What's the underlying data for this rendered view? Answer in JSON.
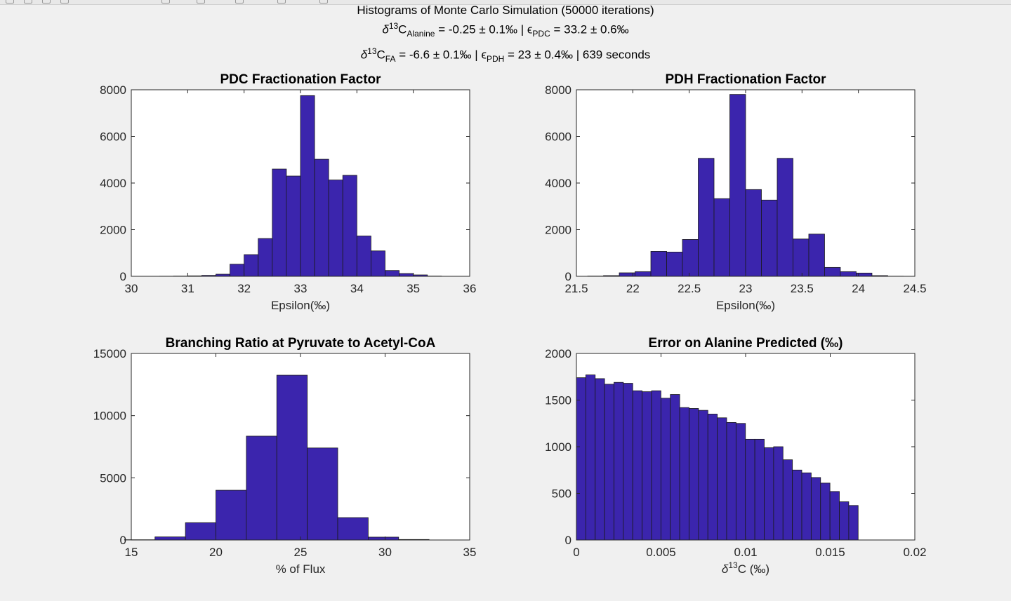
{
  "figure": {
    "line1": "Histograms of Monte Carlo Simulation (50000 iterations)",
    "line2": {
      "delta": "δ",
      "sup": "13",
      "C": "C",
      "sub_ala": "Alanine",
      "ala_val": " = -0.25 ± 0.1‰ ",
      "sep": "|",
      "eps": "ϵ",
      "sub_pdc": "PDC",
      "pdc_val": " = 33.2 ± 0.6‰"
    },
    "line3": {
      "delta": "δ",
      "sup": "13",
      "C": "C",
      "sub_fa": "FA",
      "fa_val": " = -6.6 ± 0.1‰ ",
      "sep1": "|",
      "eps": "ϵ",
      "sub_pdh": "PDH",
      "pdh_val": " = 23 ± 0.4‰ ",
      "sep2": "|",
      "seconds": "639 seconds"
    }
  },
  "chart_data": [
    {
      "type": "bar",
      "title": "PDC Fractionation Factor",
      "xlabel": "Epsilon(‰)",
      "ylabel": "",
      "xlim": [
        30,
        36
      ],
      "ylim": [
        0,
        8000
      ],
      "xticks": [
        "30",
        "31",
        "32",
        "33",
        "34",
        "35",
        "36"
      ],
      "yticks": [
        "0",
        "2000",
        "4000",
        "6000",
        "8000"
      ],
      "bin_edges": [
        30.25,
        30.5,
        30.75,
        31.0,
        31.25,
        31.5,
        31.75,
        32.0,
        32.25,
        32.5,
        32.75,
        33.0,
        33.25,
        33.5,
        33.75,
        34.0,
        34.25,
        34.5,
        34.75,
        35.0,
        35.25,
        35.5
      ],
      "values": [
        2,
        5,
        10,
        20,
        40,
        90,
        520,
        930,
        1620,
        4600,
        4300,
        7750,
        5020,
        4130,
        4330,
        1730,
        1090,
        250,
        120,
        60,
        10
      ]
    },
    {
      "type": "bar",
      "title": "PDH Fractionation Factor",
      "xlabel": "Epsilon(‰)",
      "ylabel": "",
      "xlim": [
        21.5,
        24.5
      ],
      "ylim": [
        0,
        8000
      ],
      "xticks": [
        "21.5",
        "22",
        "22.5",
        "23",
        "23.5",
        "24",
        "24.5"
      ],
      "yticks": [
        "0",
        "2000",
        "4000",
        "6000",
        "8000"
      ],
      "bin_edges": [
        21.6,
        21.74,
        21.88,
        22.02,
        22.16,
        22.3,
        22.44,
        22.58,
        22.72,
        22.86,
        23.0,
        23.14,
        23.28,
        23.42,
        23.56,
        23.7,
        23.84,
        23.98,
        24.12,
        24.26,
        24.4
      ],
      "values": [
        10,
        30,
        150,
        200,
        1070,
        1040,
        1580,
        5060,
        3330,
        7800,
        3720,
        3270,
        5060,
        1600,
        1810,
        380,
        200,
        140,
        30,
        5
      ]
    },
    {
      "type": "bar",
      "title": "Branching Ratio at Pyruvate to Acetyl-CoA",
      "xlabel": "% of Flux",
      "ylabel": "",
      "xlim": [
        15,
        35
      ],
      "ylim": [
        0,
        15000
      ],
      "xticks": [
        "15",
        "20",
        "25",
        "30",
        "35"
      ],
      "yticks": [
        "0",
        "5000",
        "10000",
        "15000"
      ],
      "bin_edges": [
        14.6,
        16.4,
        18.2,
        20.0,
        21.8,
        23.6,
        25.4,
        27.2,
        29.0,
        30.8,
        32.6
      ],
      "values": [
        20,
        250,
        1390,
        4000,
        8350,
        13250,
        7400,
        1800,
        230,
        40
      ]
    },
    {
      "type": "bar",
      "title": "Error on Alanine Predicted (‰)",
      "xlabel": "C (‰)",
      "ylabel": "",
      "xlim": [
        0,
        0.02
      ],
      "ylim": [
        0,
        2000
      ],
      "xticks": [
        "0",
        "0.005",
        "0.01",
        "0.015",
        "0.02"
      ],
      "yticks": [
        "0",
        "500",
        "1000",
        "1500",
        "2000"
      ],
      "bin_width": 0.000555,
      "values": [
        1740,
        1770,
        1730,
        1670,
        1690,
        1680,
        1600,
        1590,
        1600,
        1520,
        1560,
        1420,
        1410,
        1390,
        1350,
        1310,
        1260,
        1250,
        1080,
        1080,
        990,
        1000,
        860,
        750,
        720,
        670,
        610,
        520,
        410,
        370
      ]
    }
  ],
  "colors": {
    "bar_fill": "#3b25ad",
    "bar_edge": "#1a1a1a",
    "axes_bg": "#ffffff",
    "figure_bg": "#f0f0f0"
  }
}
